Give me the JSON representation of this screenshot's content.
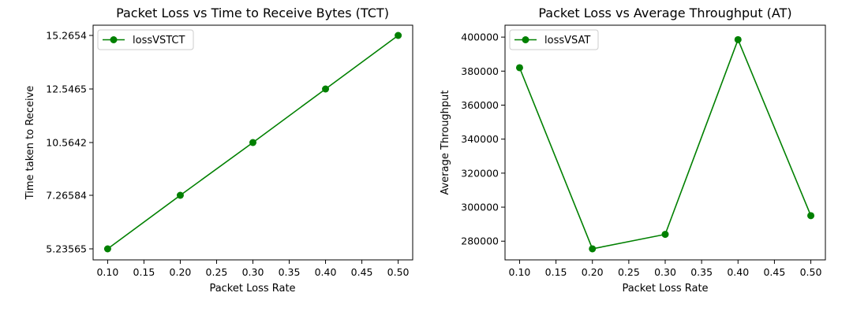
{
  "chart_data": [
    {
      "type": "line",
      "title": "Packet Loss vs Time to Receive Bytes (TCT)",
      "xlabel": "Packet Loss Rate",
      "ylabel": "Time taken to Receive",
      "x": [
        0.1,
        0.2,
        0.3,
        0.4,
        0.5
      ],
      "x_ticks": [
        "0.10",
        "0.15",
        "0.20",
        "0.25",
        "0.30",
        "0.35",
        "0.40",
        "0.45",
        "0.50"
      ],
      "y_ticks": [
        "5.23565",
        "7.26584",
        "10.5642",
        "12.5465",
        "15.2654"
      ],
      "y_categorical": true,
      "series": [
        {
          "name": "lossVSTCT",
          "values": [
            "5.23565",
            "7.26584",
            "10.5642",
            "12.5465",
            "15.2654"
          ],
          "color": "#008000"
        }
      ],
      "legend": "top-left",
      "grid": false
    },
    {
      "type": "line",
      "title": "Packet Loss vs Average Throughput (AT)",
      "xlabel": "Packet Loss Rate",
      "ylabel": "Average Throughput",
      "x": [
        0.1,
        0.2,
        0.3,
        0.4,
        0.5
      ],
      "x_ticks": [
        "0.10",
        "0.15",
        "0.20",
        "0.25",
        "0.30",
        "0.35",
        "0.40",
        "0.45",
        "0.50"
      ],
      "y_ticks": [
        "280000",
        "300000",
        "320000",
        "340000",
        "360000",
        "380000",
        "400000"
      ],
      "ylim": [
        269000,
        407000
      ],
      "series": [
        {
          "name": "lossVSAT",
          "values": [
            382000,
            275500,
            284000,
            398500,
            295000
          ],
          "color": "#008000"
        }
      ],
      "legend": "top-left",
      "grid": false
    }
  ]
}
